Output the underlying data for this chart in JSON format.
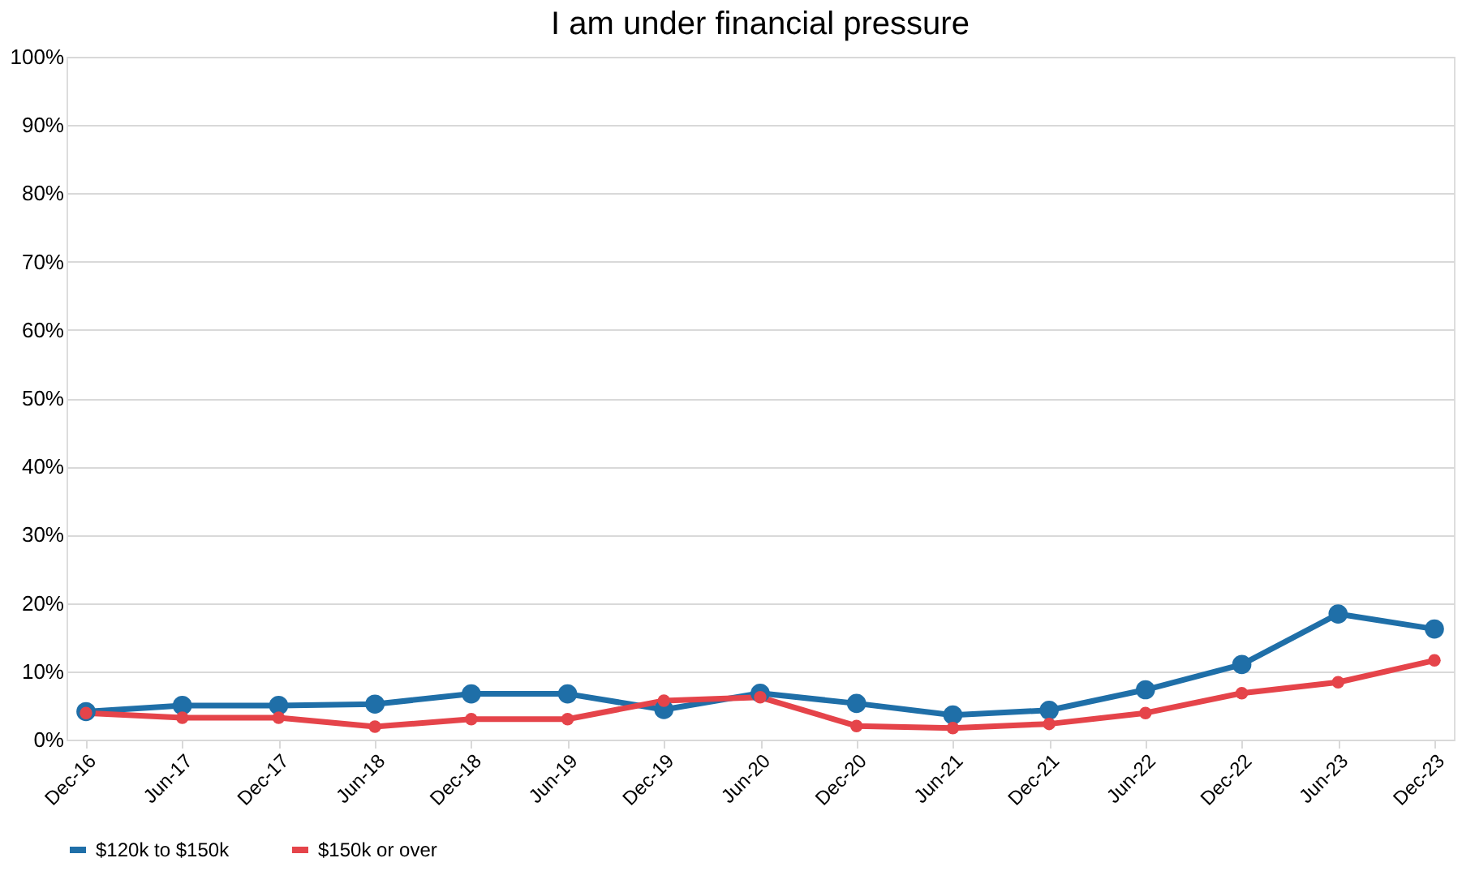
{
  "chart_data": {
    "type": "line",
    "title": "I am under financial pressure",
    "categories": [
      "Dec-16",
      "Jun-17",
      "Dec-17",
      "Jun-18",
      "Dec-18",
      "Jun-19",
      "Dec-19",
      "Jun-20",
      "Dec-20",
      "Jun-21",
      "Dec-21",
      "Jun-22",
      "Dec-22",
      "Jun-23",
      "Dec-23"
    ],
    "series": [
      {
        "name": "$120k to $150k",
        "color": "#1f6fa8",
        "values": [
          4.1,
          5.0,
          5.0,
          5.2,
          6.7,
          6.7,
          4.4,
          6.8,
          5.3,
          3.6,
          4.3,
          7.3,
          11.0,
          18.4,
          16.2
        ]
      },
      {
        "name": "$150k or over",
        "color": "#e5444a",
        "values": [
          3.9,
          3.2,
          3.2,
          1.9,
          3.0,
          3.0,
          5.7,
          6.2,
          2.0,
          1.7,
          2.3,
          3.9,
          6.8,
          8.4,
          11.6
        ]
      }
    ],
    "ylim": [
      0,
      100
    ],
    "yticks": [
      {
        "value": 0,
        "label": "0%"
      },
      {
        "value": 10,
        "label": "10%"
      },
      {
        "value": 20,
        "label": "20%"
      },
      {
        "value": 30,
        "label": "30%"
      },
      {
        "value": 40,
        "label": "40%"
      },
      {
        "value": 50,
        "label": "50%"
      },
      {
        "value": 60,
        "label": "60%"
      },
      {
        "value": 70,
        "label": "70%"
      },
      {
        "value": 80,
        "label": "80%"
      },
      {
        "value": 90,
        "label": "90%"
      },
      {
        "value": 100,
        "label": "100%"
      }
    ],
    "grid": "y",
    "legend": "bottom",
    "marker": "circle",
    "line_style": "solid"
  }
}
